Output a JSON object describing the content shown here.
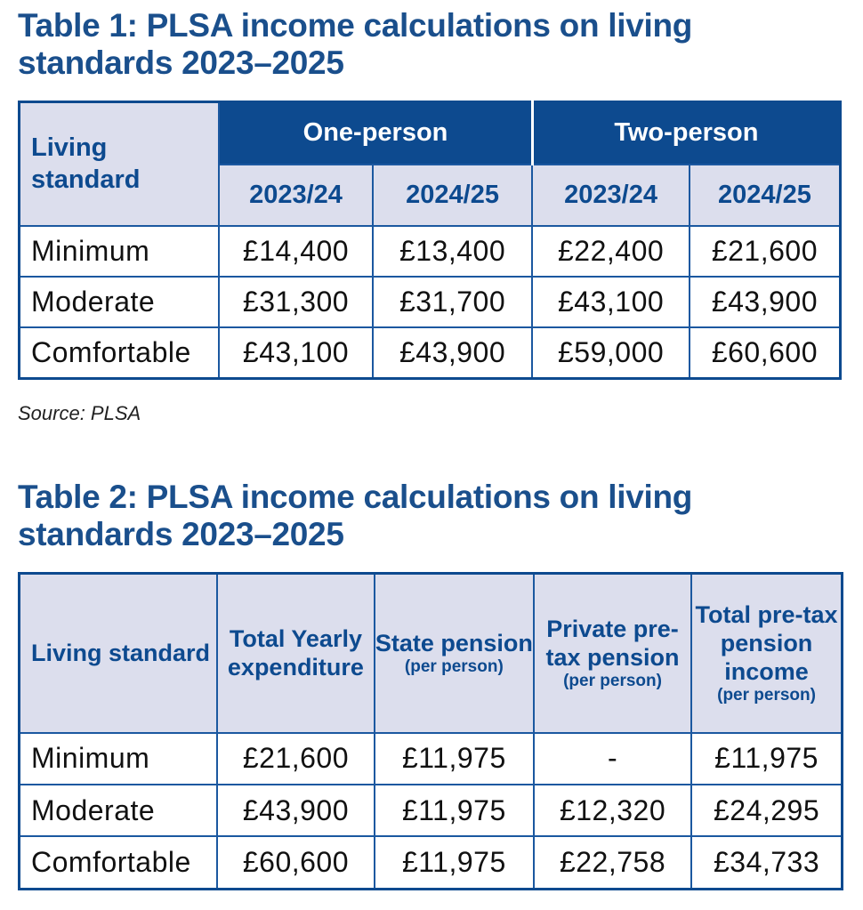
{
  "table1": {
    "title": "Table 1: PLSA income calculations on living standards 2023–2025",
    "title_line1": "Table 1: PLSA income calculations on living",
    "title_line2": "standards 2023–2025",
    "row_header": "Living standard",
    "groups": [
      "One-person",
      "Two-person"
    ],
    "years": [
      "2023/24",
      "2024/25",
      "2023/24",
      "2024/25"
    ],
    "rows": [
      {
        "label": "Minimum",
        "values": [
          "£14,400",
          "£13,400",
          "£22,400",
          "£21,600"
        ]
      },
      {
        "label": "Moderate",
        "values": [
          "£31,300",
          "£31,700",
          "£43,100",
          "£43,900"
        ]
      },
      {
        "label": "Comfortable",
        "values": [
          "£43,100",
          "£43,900",
          "£59,000",
          "£60,600"
        ]
      }
    ],
    "source": "Source: PLSA"
  },
  "table2": {
    "title_line1": "Table 2: PLSA income calculations on living",
    "title_line2": "standards 2023–2025",
    "headers": [
      {
        "main": "Living standard",
        "sub": ""
      },
      {
        "main": "Total Yearly expenditure",
        "sub": ""
      },
      {
        "main": "State pension",
        "sub": "(per person)"
      },
      {
        "main": "Private pre-tax pension",
        "sub": "(per person)"
      },
      {
        "main": "Total pre-tax pension income",
        "sub": "(per person)"
      }
    ],
    "rows": [
      {
        "label": "Minimum",
        "values": [
          "£21,600",
          "£11,975",
          "-",
          "£11,975"
        ]
      },
      {
        "label": "Moderate",
        "values": [
          "£43,900",
          "£11,975",
          "£12,320",
          "£24,295"
        ]
      },
      {
        "label": "Comfortable",
        "values": [
          "£60,600",
          "£11,975",
          "£22,758",
          "£34,733"
        ]
      }
    ]
  },
  "colors": {
    "primary": "#0d4a8f",
    "header_bg": "#dcdeed",
    "title": "#1a4f8c"
  }
}
